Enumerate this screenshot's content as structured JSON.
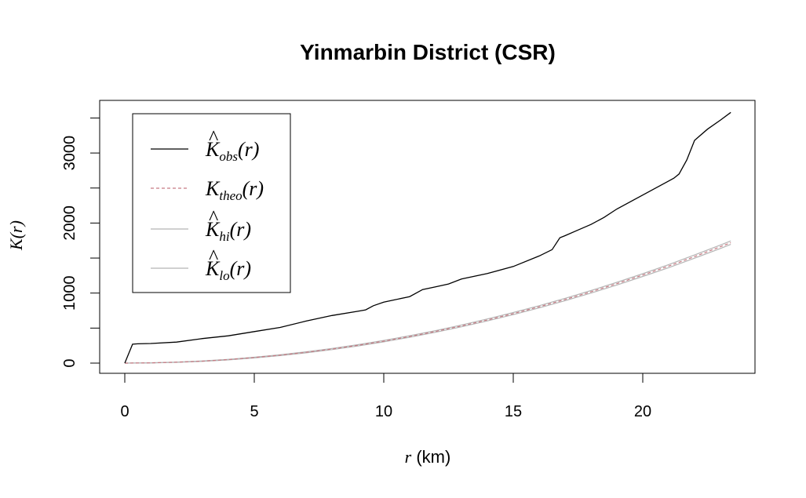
{
  "chart_data": {
    "type": "line",
    "title": "Yinmarbin District (CSR)",
    "xlabel": {
      "var": "r",
      "unit": "(km)"
    },
    "ylabel": {
      "var": "K(r)"
    },
    "xlim": [
      0,
      24
    ],
    "ylim": [
      -110,
      3700
    ],
    "x_ticks": [
      0,
      5,
      10,
      15,
      20
    ],
    "x_tick_labels": [
      "0",
      "5",
      "10",
      "15",
      "20"
    ],
    "y_ticks": [
      0,
      500,
      1000,
      1500,
      2000,
      2500,
      3000,
      3500
    ],
    "y_tick_labels": [
      "0",
      "",
      "1000",
      "",
      "2000",
      "",
      "3000",
      ""
    ],
    "grid": false,
    "legend_position": "top-left",
    "legend": [
      {
        "key": "obs",
        "sym": "K",
        "hat": true,
        "sub": "obs",
        "arg": "(r)",
        "color": "#000000",
        "dash": ""
      },
      {
        "key": "theo",
        "sym": "K",
        "hat": false,
        "sub": "theo",
        "arg": "(r)",
        "color": "#c77a83",
        "dash": "4,3"
      },
      {
        "key": "hi",
        "sym": "K",
        "hat": true,
        "sub": "hi",
        "arg": "(r)",
        "color": "#b5b5b5",
        "dash": ""
      },
      {
        "key": "lo",
        "sym": "K",
        "hat": true,
        "sub": "lo",
        "arg": "(r)",
        "color": "#b5b5b5",
        "dash": ""
      }
    ],
    "series": [
      {
        "key": "obs",
        "x": [
          0,
          0.3,
          0.5,
          1,
          2,
          3,
          4,
          5,
          6,
          7,
          8,
          9,
          9.3,
          9.6,
          10,
          11,
          11.5,
          12,
          12.5,
          13,
          14,
          15,
          16,
          16.5,
          16.8,
          17,
          17.5,
          18,
          18.5,
          19,
          20,
          21,
          21.2,
          21.4,
          21.7,
          22,
          22.5,
          23,
          23.4
        ],
        "y": [
          0,
          270,
          275,
          280,
          300,
          350,
          390,
          450,
          510,
          600,
          680,
          740,
          760,
          820,
          870,
          950,
          1050,
          1090,
          1130,
          1200,
          1280,
          1380,
          1530,
          1620,
          1790,
          1820,
          1900,
          1980,
          2080,
          2200,
          2400,
          2600,
          2640,
          2700,
          2900,
          3180,
          3340,
          3470,
          3580
        ]
      },
      {
        "key": "theo",
        "x": [
          0,
          1,
          2,
          3,
          4,
          5,
          6,
          7,
          8,
          9,
          10,
          11,
          12,
          13,
          14,
          15,
          16,
          17,
          18,
          19,
          20,
          21,
          22,
          23,
          23.4
        ],
        "y": [
          0,
          3,
          13,
          28,
          50,
          79,
          113,
          154,
          201,
          254,
          314,
          380,
          452,
          531,
          616,
          707,
          804,
          908,
          1018,
          1134,
          1257,
          1385,
          1521,
          1662,
          1720
        ]
      },
      {
        "key": "hi",
        "x": [
          0,
          1,
          2,
          3,
          4,
          5,
          6,
          7,
          8,
          9,
          10,
          11,
          12,
          13,
          14,
          15,
          16,
          17,
          18,
          19,
          20,
          21,
          22,
          23,
          23.4
        ],
        "y": [
          0,
          4,
          15,
          31,
          54,
          84,
          119,
          161,
          209,
          263,
          324,
          391,
          464,
          544,
          630,
          722,
          820,
          925,
          1036,
          1153,
          1277,
          1407,
          1544,
          1687,
          1745
        ]
      },
      {
        "key": "lo",
        "x": [
          0,
          1,
          2,
          3,
          4,
          5,
          6,
          7,
          8,
          9,
          10,
          11,
          12,
          13,
          14,
          15,
          16,
          17,
          18,
          19,
          20,
          21,
          22,
          23,
          23.4
        ],
        "y": [
          0,
          2,
          11,
          25,
          46,
          74,
          107,
          147,
          193,
          245,
          304,
          369,
          440,
          518,
          602,
          692,
          788,
          891,
          1000,
          1115,
          1237,
          1363,
          1498,
          1637,
          1695
        ]
      }
    ]
  }
}
